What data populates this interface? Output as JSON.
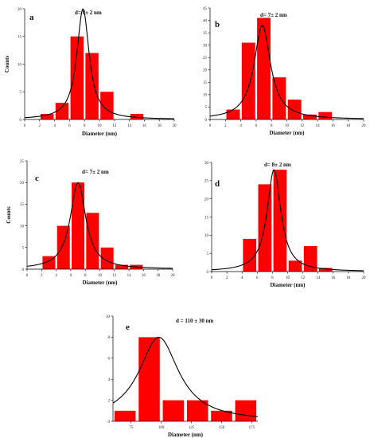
{
  "chart_data": [
    {
      "type": "bar",
      "panel_label": "a",
      "annotation": "d= 8± 2 nm",
      "xlabel": "Diameter (nm)",
      "ylabel": "Counts",
      "xlim": [
        0,
        20
      ],
      "ylim": [
        0,
        20
      ],
      "xticks": [
        0,
        2,
        4,
        6,
        8,
        10,
        12,
        14,
        16,
        18,
        20
      ],
      "yticks": [
        0,
        5,
        10,
        15,
        20
      ],
      "bar_color": "#ff0000",
      "bars": [
        {
          "x": 3,
          "value": 1
        },
        {
          "x": 5,
          "value": 3
        },
        {
          "x": 7,
          "value": 15
        },
        {
          "x": 9,
          "value": 12
        },
        {
          "x": 11,
          "value": 5
        },
        {
          "x": 13,
          "value": 0
        },
        {
          "x": 15,
          "value": 1
        }
      ],
      "bar_width": 1.75,
      "fit": {
        "type": "lorentzian",
        "center": 7.8,
        "width": 2.0,
        "amplitude": 20.0,
        "baseline": 0
      }
    },
    {
      "type": "bar",
      "panel_label": "b",
      "annotation": "d= 7± 2 nm",
      "xlabel": "Diameter (nm)",
      "ylabel": "",
      "xlim": [
        0,
        20
      ],
      "ylim": [
        0,
        45
      ],
      "xticks": [
        0,
        2,
        4,
        6,
        8,
        10,
        12,
        14,
        16,
        18,
        20
      ],
      "yticks": [
        0,
        5,
        10,
        15,
        20,
        25,
        30,
        35,
        40,
        45
      ],
      "bar_color": "#ff0000",
      "bars": [
        {
          "x": 3,
          "value": 4
        },
        {
          "x": 5,
          "value": 31
        },
        {
          "x": 7,
          "value": 41
        },
        {
          "x": 9,
          "value": 17
        },
        {
          "x": 11,
          "value": 8
        },
        {
          "x": 13,
          "value": 2
        },
        {
          "x": 15,
          "value": 3
        }
      ],
      "bar_width": 1.75,
      "fit": {
        "type": "lorentzian",
        "center": 6.8,
        "width": 2.6,
        "amplitude": 38.0,
        "baseline": 0
      }
    },
    {
      "type": "bar",
      "panel_label": "c",
      "annotation": "d= 7± 2 nm",
      "xlabel": "Diameter (nm)",
      "ylabel": "Counts",
      "xlim": [
        0,
        20
      ],
      "ylim": [
        0,
        25
      ],
      "xticks": [
        0,
        2,
        4,
        6,
        8,
        10,
        12,
        14,
        16,
        18,
        20
      ],
      "yticks": [
        0,
        5,
        10,
        15,
        20,
        25
      ],
      "bar_color": "#ff0000",
      "bars": [
        {
          "x": 3,
          "value": 3
        },
        {
          "x": 5,
          "value": 10
        },
        {
          "x": 7,
          "value": 20
        },
        {
          "x": 9,
          "value": 13
        },
        {
          "x": 11,
          "value": 5
        },
        {
          "x": 13,
          "value": 1
        },
        {
          "x": 15,
          "value": 1
        }
      ],
      "bar_width": 1.75,
      "fit": {
        "type": "lorentzian",
        "center": 7.0,
        "width": 2.6,
        "amplitude": 20.0,
        "baseline": 0
      }
    },
    {
      "type": "bar",
      "panel_label": "d",
      "annotation": "d= 8± 2 nm",
      "xlabel": "Diameter (nm)",
      "ylabel": "",
      "xlim": [
        0,
        20
      ],
      "ylim": [
        0,
        30
      ],
      "xticks": [
        0,
        2,
        4,
        6,
        8,
        10,
        12,
        14,
        16,
        18,
        20
      ],
      "yticks": [
        0,
        5,
        10,
        15,
        20,
        25,
        30
      ],
      "bar_color": "#ff0000",
      "bars": [
        {
          "x": 5,
          "value": 9
        },
        {
          "x": 7,
          "value": 24
        },
        {
          "x": 9,
          "value": 28
        },
        {
          "x": 11,
          "value": 3
        },
        {
          "x": 13,
          "value": 7
        },
        {
          "x": 15,
          "value": 1
        }
      ],
      "bar_width": 1.75,
      "fit": {
        "type": "lorentzian",
        "center": 8.2,
        "width": 2.2,
        "amplitude": 28.0,
        "baseline": 0
      }
    },
    {
      "type": "bar",
      "panel_label": "e",
      "annotation": "d = 110 ± 30 nm",
      "xlabel": "Diameter (nm)",
      "ylabel": "",
      "xlim": [
        60,
        180
      ],
      "ylim": [
        0,
        10
      ],
      "xticks": [
        75,
        100,
        125,
        150,
        175
      ],
      "yticks": [
        0,
        2,
        4,
        6,
        8,
        10
      ],
      "bar_color": "#ff0000",
      "bars": [
        {
          "x": 70,
          "value": 1
        },
        {
          "x": 90,
          "value": 8
        },
        {
          "x": 110,
          "value": 2
        },
        {
          "x": 130,
          "value": 2
        },
        {
          "x": 150,
          "value": 1
        },
        {
          "x": 170,
          "value": 2
        }
      ],
      "bar_width": 17.5,
      "fit": {
        "type": "lorentzian",
        "center": 98,
        "width": 40,
        "amplitude": 8.0,
        "baseline": 0
      }
    }
  ]
}
